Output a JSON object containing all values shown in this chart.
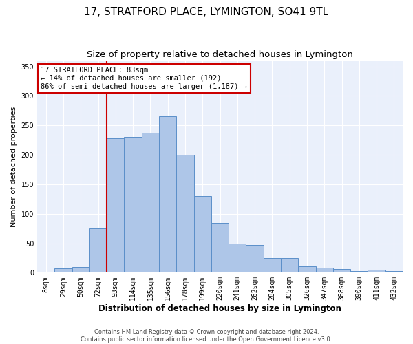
{
  "title": "17, STRATFORD PLACE, LYMINGTON, SO41 9TL",
  "subtitle": "Size of property relative to detached houses in Lymington",
  "xlabel": "Distribution of detached houses by size in Lymington",
  "ylabel": "Number of detached properties",
  "categories": [
    "8sqm",
    "29sqm",
    "50sqm",
    "72sqm",
    "93sqm",
    "114sqm",
    "135sqm",
    "156sqm",
    "178sqm",
    "199sqm",
    "220sqm",
    "241sqm",
    "262sqm",
    "284sqm",
    "305sqm",
    "326sqm",
    "347sqm",
    "368sqm",
    "390sqm",
    "411sqm",
    "432sqm"
  ],
  "values": [
    2,
    7,
    10,
    75,
    228,
    230,
    237,
    265,
    200,
    130,
    85,
    50,
    47,
    25,
    25,
    11,
    8,
    6,
    3,
    5,
    3
  ],
  "bar_color": "#aec6e8",
  "bar_edge_color": "#5b8fc9",
  "red_line_index": 4,
  "annotation_text": "17 STRATFORD PLACE: 83sqm\n← 14% of detached houses are smaller (192)\n86% of semi-detached houses are larger (1,187) →",
  "annotation_box_color": "#ffffff",
  "annotation_box_edge_color": "#cc0000",
  "red_line_color": "#cc0000",
  "ylim": [
    0,
    360
  ],
  "yticks": [
    0,
    50,
    100,
    150,
    200,
    250,
    300,
    350
  ],
  "background_color": "#eaf0fb",
  "grid_color": "#ffffff",
  "footer_line1": "Contains HM Land Registry data © Crown copyright and database right 2024.",
  "footer_line2": "Contains public sector information licensed under the Open Government Licence v3.0.",
  "title_fontsize": 11,
  "subtitle_fontsize": 9.5,
  "xlabel_fontsize": 8.5,
  "ylabel_fontsize": 8,
  "tick_fontsize": 7,
  "annotation_fontsize": 7.5,
  "footer_fontsize": 6
}
